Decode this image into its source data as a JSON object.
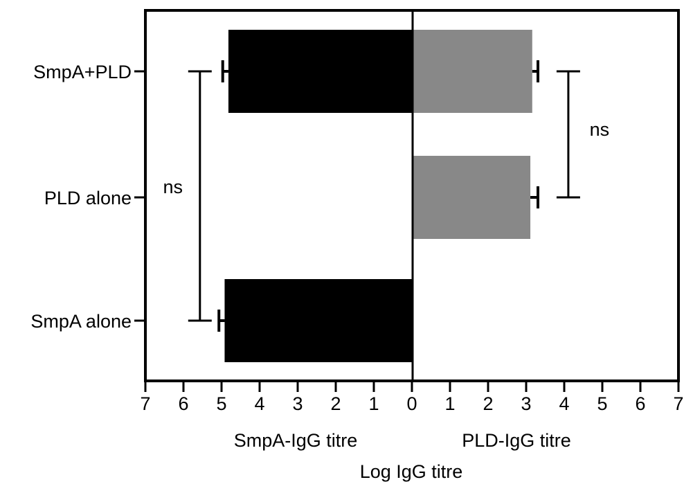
{
  "chart_data": {
    "type": "bar",
    "orientation": "horizontal",
    "layout": "back-to-back",
    "categories": [
      "SmpA+PLD",
      "PLD alone",
      "SmpA alone"
    ],
    "series": [
      {
        "name": "SmpA-IgG titre",
        "side": "left",
        "color": "#000000",
        "values": [
          4.85,
          null,
          4.95
        ],
        "errors": [
          0.15,
          null,
          0.15
        ]
      },
      {
        "name": "PLD-IgG titre",
        "side": "right",
        "color": "#888888",
        "values": [
          3.15,
          3.1,
          null
        ],
        "errors": [
          0.15,
          0.2,
          null
        ]
      }
    ],
    "xlim": [
      0,
      7
    ],
    "x_ticks": [
      "7",
      "6",
      "5",
      "4",
      "3",
      "2",
      "1",
      "0",
      "1",
      "2",
      "3",
      "4",
      "5",
      "6",
      "7"
    ],
    "left_axis_label": "SmpA-IgG titre",
    "right_axis_label": "PLD-IgG titre",
    "xlabel": "Log IgG titre",
    "annotations": [
      {
        "text": "ns",
        "side": "left",
        "from": "SmpA+PLD",
        "to": "SmpA alone",
        "value": 5.6
      },
      {
        "text": "ns",
        "side": "right",
        "from": "SmpA+PLD",
        "to": "PLD alone",
        "value": 4.1
      }
    ],
    "grid": false,
    "legend": "none"
  }
}
